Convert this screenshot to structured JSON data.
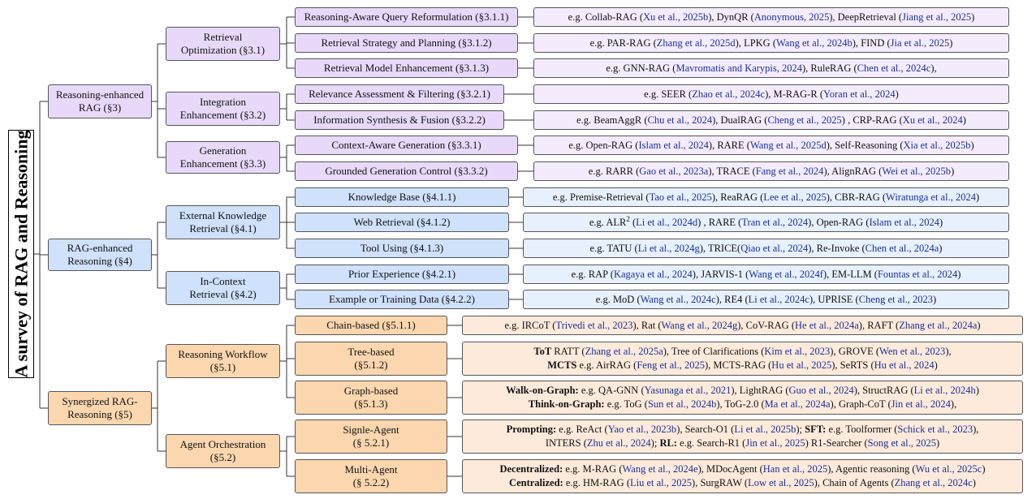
{
  "root": "A survey of RAG and Reasoning",
  "sections": [
    {
      "label": "Reasoning-enhanced RAG  (§3)",
      "lines": [
        "Reasoning-enhanced",
        "RAG  (§3)"
      ],
      "color": "#e8d9fb",
      "groups": [
        {
          "lines": [
            "Retrieval",
            "Optimization   (§3.1)"
          ],
          "items": [
            {
              "label": "Reasoning-Aware Query Reformulation (§3.1.1)",
              "rows": [
                [
                  {
                    "t": "e.g.  Collab-RAG ("
                  },
                  {
                    "t": "Xu et al., 2025b",
                    "c": 1
                  },
                  {
                    "t": "), DynQR ("
                  },
                  {
                    "t": "Anonymous, 2025",
                    "c": 1
                  },
                  {
                    "t": "), DeepRetrieval ("
                  },
                  {
                    "t": "Jiang et al., 2025",
                    "c": 1
                  },
                  {
                    "t": ")"
                  }
                ]
              ]
            },
            {
              "label": "Retrieval Strategy and Planning (§3.1.2)",
              "rows": [
                [
                  {
                    "t": "e.g.  PAR-RAG ("
                  },
                  {
                    "t": "Zhang et al., 2025d",
                    "c": 1
                  },
                  {
                    "t": "), LPKG ("
                  },
                  {
                    "t": "Wang et al., 2024b",
                    "c": 1
                  },
                  {
                    "t": "), FIND ("
                  },
                  {
                    "t": "Jia et al., 2025",
                    "c": 1
                  },
                  {
                    "t": ")"
                  }
                ]
              ]
            },
            {
              "label": "Retrieval Model Enhancement (§3.1.3)",
              "rows": [
                [
                  {
                    "t": "e.g.  GNN-RAG ("
                  },
                  {
                    "t": "Mavromatis and Karypis, 2024",
                    "c": 1
                  },
                  {
                    "t": "), RuleRAG ("
                  },
                  {
                    "t": "Chen et al., 2024c",
                    "c": 1
                  },
                  {
                    "t": "),"
                  }
                ]
              ]
            }
          ]
        },
        {
          "lines": [
            "Integration",
            "Enhancement  (§3.2)"
          ],
          "items": [
            {
              "label": "Relevance Assessment & Filtering (§3.2.1)",
              "rows": [
                [
                  {
                    "t": "e.g.  SEER ("
                  },
                  {
                    "t": "Zhao et al., 2024c",
                    "c": 1
                  },
                  {
                    "t": "), M-RAG-R ("
                  },
                  {
                    "t": "Yoran et al., 2024",
                    "c": 1
                  },
                  {
                    "t": ")"
                  }
                ]
              ]
            },
            {
              "label": "Information Synthesis & Fusion (§3.2.2)",
              "rows": [
                [
                  {
                    "t": "e.g.  BeamAggR ("
                  },
                  {
                    "t": "Chu et al., 2024",
                    "c": 1
                  },
                  {
                    "t": "), DualRAG ("
                  },
                  {
                    "t": "Cheng et al., 2025",
                    "c": 1
                  },
                  {
                    "t": ") , CRP-RAG ("
                  },
                  {
                    "t": "Xu et al., 2024",
                    "c": 1
                  },
                  {
                    "t": ")"
                  }
                ]
              ]
            }
          ]
        },
        {
          "lines": [
            "Generation",
            "Enhancement  (§3.3)"
          ],
          "items": [
            {
              "label": "Context-Aware Generation (§3.3.1)",
              "rows": [
                [
                  {
                    "t": "e.g.  Open-RAG ("
                  },
                  {
                    "t": "Islam et al., 2024",
                    "c": 1
                  },
                  {
                    "t": "), RARE ("
                  },
                  {
                    "t": "Wang et al., 2025d",
                    "c": 1
                  },
                  {
                    "t": "), Self-Reasoning ("
                  },
                  {
                    "t": "Xia et al., 2025b",
                    "c": 1
                  },
                  {
                    "t": ")"
                  }
                ]
              ]
            },
            {
              "label": "Grounded Generation Control (§3.3.2)",
              "rows": [
                [
                  {
                    "t": "e.g.  RARR ("
                  },
                  {
                    "t": "Gao et al., 2023a",
                    "c": 1
                  },
                  {
                    "t": "), TRACE ("
                  },
                  {
                    "t": "Fang et al., 2024",
                    "c": 1
                  },
                  {
                    "t": "), AlignRAG ("
                  },
                  {
                    "t": "Wei et al., 2025b",
                    "c": 1
                  },
                  {
                    "t": ")"
                  }
                ]
              ]
            }
          ]
        }
      ]
    },
    {
      "label": "RAG-enhanced Reasoning (§4)",
      "lines": [
        "RAG-enhanced",
        "Reasoning  (§4)"
      ],
      "color": "#cfe1fb",
      "groups": [
        {
          "lines": [
            "External Knowledge",
            "Retrieval  (§4.1)"
          ],
          "items": [
            {
              "label": "Knowledge Base (§4.1.1)",
              "rows": [
                [
                  {
                    "t": "e.g.  Premise-Retrieval ("
                  },
                  {
                    "t": "Tao et al., 2025",
                    "c": 1
                  },
                  {
                    "t": "),  ReaRAG ("
                  },
                  {
                    "t": "Lee et al., 2025",
                    "c": 1
                  },
                  {
                    "t": "),  CBR-RAG ("
                  },
                  {
                    "t": "Wiratunga et al., 2024",
                    "c": 1
                  },
                  {
                    "t": ")"
                  }
                ]
              ]
            },
            {
              "label": "Web Retrieval (§4.1.2)",
              "rows": [
                [
                  {
                    "t": "e.g.  ALR"
                  },
                  {
                    "t": "2",
                    "sup": 1
                  },
                  {
                    "t": " ("
                  },
                  {
                    "t": "Li et al., 2024d",
                    "c": 1
                  },
                  {
                    "t": ")  ,  RARE ("
                  },
                  {
                    "t": "Tran et al., 2024",
                    "c": 1
                  },
                  {
                    "t": "),  Open-RAG ("
                  },
                  {
                    "t": "Islam et al., 2024",
                    "c": 1
                  },
                  {
                    "t": ")"
                  }
                ]
              ]
            },
            {
              "label": "Tool Using (§4.1.3)",
              "rows": [
                [
                  {
                    "t": "e.g.  TATU ("
                  },
                  {
                    "t": "Li et al., 2024g",
                    "c": 1
                  },
                  {
                    "t": "),  TRICE("
                  },
                  {
                    "t": "Qiao et al., 2024",
                    "c": 1
                  },
                  {
                    "t": "),  Re-Invoke ("
                  },
                  {
                    "t": "Chen et al., 2024a",
                    "c": 1
                  },
                  {
                    "t": ")"
                  }
                ]
              ]
            }
          ]
        },
        {
          "lines": [
            "In-Context",
            "Retrieval  (§4.2)"
          ],
          "items": [
            {
              "label": "Prior Experience (§4.2.1)",
              "rows": [
                [
                  {
                    "t": "e.g.  RAP ("
                  },
                  {
                    "t": "Kagaya et al., 2024",
                    "c": 1
                  },
                  {
                    "t": "),  JARVIS-1 ("
                  },
                  {
                    "t": "Wang et al., 2024f",
                    "c": 1
                  },
                  {
                    "t": "),  EM-LLM ("
                  },
                  {
                    "t": "Fountas et al., 2024",
                    "c": 1
                  },
                  {
                    "t": ")"
                  }
                ]
              ]
            },
            {
              "label": "Example or Training Data (§4.2.2)",
              "rows": [
                [
                  {
                    "t": "e.g.  MoD ("
                  },
                  {
                    "t": "Wang et al., 2024c",
                    "c": 1
                  },
                  {
                    "t": "),  RE4 ("
                  },
                  {
                    "t": "Li et al., 2024c",
                    "c": 1
                  },
                  {
                    "t": "),  UPRISE ("
                  },
                  {
                    "t": "Cheng et al., 2023",
                    "c": 1
                  },
                  {
                    "t": ")"
                  }
                ]
              ]
            }
          ]
        }
      ]
    },
    {
      "label": "Synergized RAG-Reasoning (§5)",
      "lines": [
        "Synergized RAG-",
        "Reasoning  (§5)"
      ],
      "color": "#fbd6ae",
      "groups": [
        {
          "lines": [
            "Reasoning Workflow",
            "(§5.1)"
          ],
          "items": [
            {
              "label": "Chain-based (§5.1.1)",
              "lines": [
                "Chain-based (§5.1.1)"
              ],
              "rows": [
                [
                  {
                    "t": "e.g.  IRCoT ("
                  },
                  {
                    "t": "Trivedi et al., 2023",
                    "c": 1
                  },
                  {
                    "t": "), Rat ("
                  },
                  {
                    "t": "Wang et al., 2024g",
                    "c": 1
                  },
                  {
                    "t": "), CoV-RAG ("
                  },
                  {
                    "t": "He et al., 2024a",
                    "c": 1
                  },
                  {
                    "t": "), RAFT ("
                  },
                  {
                    "t": "Zhang et al., 2024a",
                    "c": 1
                  },
                  {
                    "t": ")"
                  }
                ]
              ]
            },
            {
              "label": "Tree-based (§5.1.2)",
              "lines": [
                "Tree-based",
                "(§5.1.2)"
              ],
              "rows": [
                [
                  {
                    "t": "ToT",
                    "b": 1
                  },
                  {
                    "t": "  RATT ("
                  },
                  {
                    "t": "Zhang et al., 2025a",
                    "c": 1
                  },
                  {
                    "t": "), Tree of Clarifications ("
                  },
                  {
                    "t": "Kim et al., 2023",
                    "c": 1
                  },
                  {
                    "t": "), GROVE ("
                  },
                  {
                    "t": "Wen et al., 2023",
                    "c": 1
                  },
                  {
                    "t": "),"
                  }
                ],
                [
                  {
                    "t": "MCTS",
                    "b": 1
                  },
                  {
                    "t": "  e.g.  AirRAG ("
                  },
                  {
                    "t": "Feng et al., 2025",
                    "c": 1
                  },
                  {
                    "t": "), MCTS-RAG ("
                  },
                  {
                    "t": "Hu et al., 2025",
                    "c": 1
                  },
                  {
                    "t": "), SeRTS ("
                  },
                  {
                    "t": "Hu et al., 2024",
                    "c": 1
                  },
                  {
                    "t": ")"
                  }
                ]
              ]
            },
            {
              "label": "Graph-based (§5.1.3)",
              "lines": [
                "Graph-based",
                "(§5.1.3)"
              ],
              "rows": [
                [
                  {
                    "t": "Walk-on-Graph:",
                    "b": 1
                  },
                  {
                    "t": " e.g.  QA-GNN ("
                  },
                  {
                    "t": "Yasunaga et al., 2021",
                    "c": 1
                  },
                  {
                    "t": "), LightRAG ("
                  },
                  {
                    "t": "Guo et al., 2024",
                    "c": 1
                  },
                  {
                    "t": "), StructRAG ("
                  },
                  {
                    "t": "Li et al., 2024h",
                    "c": 1
                  },
                  {
                    "t": ")"
                  }
                ],
                [
                  {
                    "t": "Think-on-Graph:",
                    "b": 1
                  },
                  {
                    "t": "  e.g.  ToG ("
                  },
                  {
                    "t": "Sun et al., 2024b",
                    "c": 1
                  },
                  {
                    "t": "), ToG-2.0 ("
                  },
                  {
                    "t": "Ma et al., 2024a",
                    "c": 1
                  },
                  {
                    "t": "), Graph-CoT ("
                  },
                  {
                    "t": "Jin et al., 2024",
                    "c": 1
                  },
                  {
                    "t": "),"
                  }
                ]
              ]
            }
          ]
        },
        {
          "lines": [
            "Agent Orchestration",
            "(§5.2)"
          ],
          "items": [
            {
              "label": "Signle-Agent (§ 5.2.1)",
              "lines": [
                "Signle-Agent",
                "(§ 5.2.1)"
              ],
              "rows": [
                [
                  {
                    "t": "Prompting:",
                    "b": 1
                  },
                  {
                    "t": "  e.g.  ReAct ("
                  },
                  {
                    "t": "Yao et al., 2023b",
                    "c": 1
                  },
                  {
                    "t": "), Search-O1 ("
                  },
                  {
                    "t": "Li et al., 2025b",
                    "c": 1
                  },
                  {
                    "t": "); "
                  },
                  {
                    "t": "SFT:",
                    "b": 1
                  },
                  {
                    "t": " e.g.  Toolformer ("
                  },
                  {
                    "t": "Schick et al., 2023",
                    "c": 1
                  },
                  {
                    "t": "),"
                  }
                ],
                [
                  {
                    "t": "INTERS ("
                  },
                  {
                    "t": "Zhu et al., 2024",
                    "c": 1
                  },
                  {
                    "t": "); "
                  },
                  {
                    "t": "RL:",
                    "b": 1
                  },
                  {
                    "t": "  e.g.  Search-R1 ("
                  },
                  {
                    "t": "Jin et al., 2025",
                    "c": 1
                  },
                  {
                    "t": ") R1-Searcher ("
                  },
                  {
                    "t": "Song et al., 2025",
                    "c": 1
                  },
                  {
                    "t": ")"
                  }
                ]
              ]
            },
            {
              "label": "Multi-Agent (§ 5.2.2)",
              "lines": [
                "Multi-Agent",
                "(§ 5.2.2)"
              ],
              "rows": [
                [
                  {
                    "t": "Decentralized:",
                    "b": 1
                  },
                  {
                    "t": "  e.g.  M-RAG ("
                  },
                  {
                    "t": "Wang et al., 2024e",
                    "c": 1
                  },
                  {
                    "t": "), MDocAgent ("
                  },
                  {
                    "t": "Han et al., 2025",
                    "c": 1
                  },
                  {
                    "t": "), Agentic reasoning ("
                  },
                  {
                    "t": "Wu et al., 2025c",
                    "c": 1
                  },
                  {
                    "t": ")"
                  }
                ],
                [
                  {
                    "t": "Centralized:",
                    "b": 1
                  },
                  {
                    "t": "  e.g.  HM-RAG ("
                  },
                  {
                    "t": "Liu et al., 2025",
                    "c": 1
                  },
                  {
                    "t": "), SurgRAW ("
                  },
                  {
                    "t": "Low et al., 2025",
                    "c": 1
                  },
                  {
                    "t": "), Chain of Agents ("
                  },
                  {
                    "t": "Zhang et al., 2024c",
                    "c": 1
                  },
                  {
                    "t": ")"
                  }
                ]
              ]
            }
          ]
        }
      ]
    }
  ]
}
